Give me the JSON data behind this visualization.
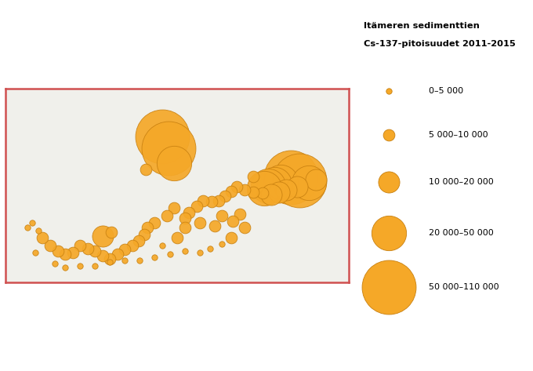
{
  "title_line1": "Itämeren sedimenttien",
  "title_line2": "Cs-137-pitoisuudet 2011-2015",
  "background_color": "#d6ecf0",
  "land_color": "#f0f0eb",
  "border_color": "#888888",
  "coastline_color": "#555555",
  "border_frame_color": "#d05050",
  "dot_fill_color": "#f5a828",
  "dot_edge_color": "#c88010",
  "legend_labels": [
    "0–5 000",
    "5 000–10 000",
    "10 000–20 000",
    "20 000–50 000",
    "50 000–110 000"
  ],
  "legend_radii": [
    3,
    6,
    11,
    18,
    28
  ],
  "lon_min": 9.0,
  "lon_max": 32.0,
  "lat_min": 53.5,
  "lat_max": 66.5,
  "data_points": [
    {
      "lon": 19.5,
      "lat": 63.3,
      "cat": 4
    },
    {
      "lon": 19.9,
      "lat": 62.5,
      "cat": 4
    },
    {
      "lon": 20.3,
      "lat": 61.5,
      "cat": 3
    },
    {
      "lon": 18.4,
      "lat": 61.1,
      "cat": 1
    },
    {
      "lon": 28.1,
      "lat": 60.55,
      "cat": 4
    },
    {
      "lon": 28.7,
      "lat": 60.35,
      "cat": 4
    },
    {
      "lon": 27.4,
      "lat": 60.25,
      "cat": 3
    },
    {
      "lon": 27.0,
      "lat": 60.1,
      "cat": 3
    },
    {
      "lon": 26.6,
      "lat": 59.95,
      "cat": 3
    },
    {
      "lon": 26.3,
      "lat": 59.8,
      "cat": 3
    },
    {
      "lon": 29.3,
      "lat": 60.2,
      "cat": 3
    },
    {
      "lon": 29.8,
      "lat": 60.4,
      "cat": 2
    },
    {
      "lon": 28.5,
      "lat": 59.9,
      "cat": 2
    },
    {
      "lon": 27.8,
      "lat": 59.7,
      "cat": 2
    },
    {
      "lon": 27.3,
      "lat": 59.55,
      "cat": 2
    },
    {
      "lon": 26.8,
      "lat": 59.4,
      "cat": 2
    },
    {
      "lon": 26.2,
      "lat": 59.5,
      "cat": 1
    },
    {
      "lon": 25.6,
      "lat": 59.55,
      "cat": 1
    },
    {
      "lon": 25.0,
      "lat": 59.7,
      "cat": 1
    },
    {
      "lon": 24.5,
      "lat": 59.9,
      "cat": 1
    },
    {
      "lon": 24.1,
      "lat": 59.6,
      "cat": 1
    },
    {
      "lon": 23.7,
      "lat": 59.3,
      "cat": 1
    },
    {
      "lon": 23.3,
      "lat": 59.0,
      "cat": 1
    },
    {
      "lon": 22.8,
      "lat": 58.9,
      "cat": 1
    },
    {
      "lon": 22.2,
      "lat": 59.0,
      "cat": 1
    },
    {
      "lon": 21.8,
      "lat": 58.6,
      "cat": 1
    },
    {
      "lon": 21.3,
      "lat": 58.2,
      "cat": 1
    },
    {
      "lon": 21.0,
      "lat": 57.8,
      "cat": 1
    },
    {
      "lon": 20.3,
      "lat": 58.5,
      "cat": 1
    },
    {
      "lon": 19.8,
      "lat": 58.0,
      "cat": 1
    },
    {
      "lon": 19.0,
      "lat": 57.5,
      "cat": 1
    },
    {
      "lon": 18.5,
      "lat": 57.2,
      "cat": 1
    },
    {
      "lon": 18.3,
      "lat": 56.7,
      "cat": 1
    },
    {
      "lon": 17.9,
      "lat": 56.3,
      "cat": 1
    },
    {
      "lon": 17.5,
      "lat": 56.0,
      "cat": 1
    },
    {
      "lon": 17.0,
      "lat": 55.7,
      "cat": 1
    },
    {
      "lon": 16.5,
      "lat": 55.4,
      "cat": 1
    },
    {
      "lon": 16.0,
      "lat": 55.1,
      "cat": 1
    },
    {
      "lon": 15.5,
      "lat": 55.3,
      "cat": 1
    },
    {
      "lon": 15.0,
      "lat": 55.6,
      "cat": 1
    },
    {
      "lon": 14.5,
      "lat": 55.8,
      "cat": 1
    },
    {
      "lon": 14.0,
      "lat": 56.0,
      "cat": 1
    },
    {
      "lon": 13.5,
      "lat": 55.5,
      "cat": 1
    },
    {
      "lon": 13.0,
      "lat": 55.4,
      "cat": 1
    },
    {
      "lon": 12.5,
      "lat": 55.6,
      "cat": 1
    },
    {
      "lon": 12.0,
      "lat": 56.0,
      "cat": 1
    },
    {
      "lon": 11.5,
      "lat": 56.5,
      "cat": 1
    },
    {
      "lon": 11.2,
      "lat": 57.0,
      "cat": 0
    },
    {
      "lon": 10.8,
      "lat": 57.5,
      "cat": 0
    },
    {
      "lon": 10.5,
      "lat": 57.2,
      "cat": 0
    },
    {
      "lon": 11.0,
      "lat": 55.5,
      "cat": 0
    },
    {
      "lon": 12.3,
      "lat": 54.8,
      "cat": 0
    },
    {
      "lon": 13.0,
      "lat": 54.5,
      "cat": 0
    },
    {
      "lon": 14.0,
      "lat": 54.6,
      "cat": 0
    },
    {
      "lon": 15.0,
      "lat": 54.6,
      "cat": 0
    },
    {
      "lon": 16.0,
      "lat": 54.9,
      "cat": 0
    },
    {
      "lon": 17.0,
      "lat": 55.0,
      "cat": 0
    },
    {
      "lon": 18.0,
      "lat": 55.0,
      "cat": 0
    },
    {
      "lon": 19.0,
      "lat": 55.2,
      "cat": 0
    },
    {
      "lon": 20.0,
      "lat": 55.4,
      "cat": 0
    },
    {
      "lon": 21.0,
      "lat": 55.6,
      "cat": 0
    },
    {
      "lon": 22.0,
      "lat": 55.5,
      "cat": 0
    },
    {
      "lon": 22.7,
      "lat": 55.8,
      "cat": 0
    },
    {
      "lon": 23.5,
      "lat": 56.1,
      "cat": 0
    },
    {
      "lon": 24.1,
      "lat": 56.5,
      "cat": 1
    },
    {
      "lon": 25.0,
      "lat": 57.2,
      "cat": 1
    },
    {
      "lon": 24.7,
      "lat": 58.1,
      "cat": 1
    },
    {
      "lon": 24.2,
      "lat": 57.6,
      "cat": 1
    },
    {
      "lon": 15.5,
      "lat": 56.6,
      "cat": 2
    },
    {
      "lon": 16.1,
      "lat": 56.9,
      "cat": 1
    },
    {
      "lon": 25.6,
      "lat": 60.6,
      "cat": 1
    },
    {
      "lon": 23.5,
      "lat": 58.0,
      "cat": 1
    },
    {
      "lon": 20.5,
      "lat": 56.5,
      "cat": 1
    },
    {
      "lon": 19.5,
      "lat": 56.0,
      "cat": 0
    },
    {
      "lon": 22.0,
      "lat": 57.5,
      "cat": 1
    },
    {
      "lon": 21.0,
      "lat": 57.2,
      "cat": 1
    },
    {
      "lon": 23.0,
      "lat": 57.3,
      "cat": 1
    }
  ]
}
